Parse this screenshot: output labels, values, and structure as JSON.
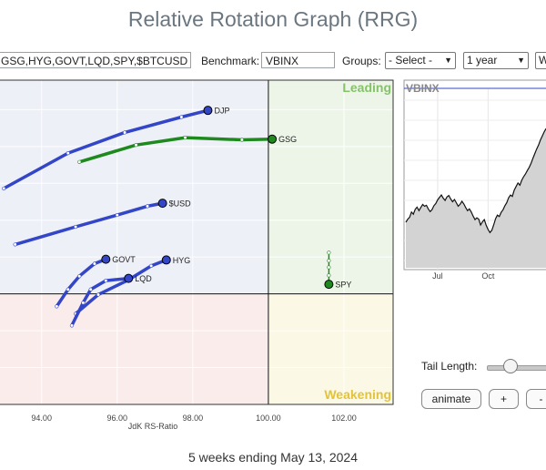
{
  "page": {
    "title": "Relative Rotation Graph (RRG)"
  },
  "toolbar": {
    "symbols_value": "GSG,HYG,GOVT,LQD,SPY,$BTCUSD",
    "benchmark_label": "Benchmark:",
    "benchmark_value": "VBINX",
    "groups_label": "Groups:",
    "groups_value": "- Select -",
    "period_value": "1 year",
    "extra_value": "W"
  },
  "rrg": {
    "quadrants": {
      "leading": "Leading",
      "weakening": "Weakening"
    },
    "xlabel": "JdK RS-Ratio",
    "xticks": [
      "94.00",
      "96.00",
      "98.00",
      "100.00",
      "102.00"
    ],
    "xlim": [
      92.9,
      103.3
    ],
    "center": [
      100,
      100
    ],
    "colors": {
      "leading": "#edf5e8",
      "weakening": "#fbf8e6",
      "lagging": "#fbecec",
      "improving": "#eef0f8",
      "blue": "#3346c7",
      "green": "#1e8a1e"
    }
  },
  "chart_data": [
    {
      "type": "scatter",
      "title": "",
      "xlabel": "JdK RS-Ratio",
      "ylabel": "",
      "xlim": [
        92.9,
        103.3
      ],
      "ylim": [
        98.5,
        102.9
      ],
      "series": [
        {
          "name": "DJP",
          "color": "#3346c7",
          "x": [
            93.0,
            94.7,
            96.2,
            97.7,
            98.4
          ],
          "y": [
            101.43,
            101.91,
            102.19,
            102.4,
            102.49
          ]
        },
        {
          "name": "GSG",
          "color": "#1e8a1e",
          "x": [
            95.0,
            96.5,
            97.8,
            99.3,
            100.1
          ],
          "y": [
            101.79,
            102.02,
            102.12,
            102.09,
            102.1
          ]
        },
        {
          "name": "$USD",
          "color": "#3346c7",
          "x": [
            93.3,
            94.9,
            96.0,
            96.8,
            97.2
          ],
          "y": [
            100.67,
            100.91,
            101.07,
            101.19,
            101.23
          ]
        },
        {
          "name": "GOVT",
          "color": "#3346c7",
          "x": [
            94.4,
            94.7,
            95.0,
            95.4,
            95.7
          ],
          "y": [
            99.83,
            100.06,
            100.24,
            100.41,
            100.47
          ]
        },
        {
          "name": "HYG",
          "color": "#3346c7",
          "x": [
            94.9,
            95.5,
            96.3,
            96.9,
            97.3
          ],
          "y": [
            99.73,
            99.99,
            100.19,
            100.38,
            100.46
          ]
        },
        {
          "name": "LQD",
          "color": "#3346c7",
          "x": [
            94.8,
            95.1,
            95.3,
            95.7,
            96.3
          ],
          "y": [
            99.57,
            99.88,
            100.06,
            100.18,
            100.21
          ]
        },
        {
          "name": "SPY",
          "color": "#1e8a1e",
          "x": [
            101.6,
            101.6,
            101.6,
            101.6,
            101.6
          ],
          "y": [
            100.56,
            100.45,
            100.36,
            100.25,
            100.13
          ]
        }
      ]
    },
    {
      "type": "area",
      "title": "VBINX",
      "xlabel": "",
      "ylabel": "",
      "xticks": [
        "Jul",
        "Oct"
      ],
      "x_index": [
        0,
        1,
        2,
        3,
        4,
        5,
        6,
        7,
        8,
        9,
        10,
        11,
        12,
        13,
        14,
        15,
        16,
        17,
        18,
        19,
        20,
        21,
        22,
        23,
        24,
        25,
        26,
        27,
        28,
        29,
        30,
        31,
        32,
        33,
        34,
        35,
        36,
        37,
        38,
        39,
        40,
        41,
        42,
        43,
        44,
        45,
        46,
        47,
        48,
        49,
        50,
        51,
        52,
        53,
        54,
        55,
        56,
        57,
        58,
        59,
        60,
        61,
        62,
        63,
        64,
        65,
        66,
        67,
        68,
        69,
        70,
        71,
        72,
        73,
        74,
        75
      ],
      "values": [
        40.2,
        40.9,
        41.3,
        42.5,
        42.0,
        43.1,
        43.6,
        42.8,
        43.5,
        44.2,
        43.8,
        44.0,
        43.2,
        42.6,
        43.0,
        43.9,
        44.4,
        45.2,
        45.8,
        46.3,
        45.6,
        45.1,
        45.9,
        46.2,
        45.4,
        44.8,
        45.3,
        44.6,
        43.8,
        44.2,
        44.9,
        44.3,
        43.5,
        42.8,
        43.2,
        42.5,
        41.6,
        40.8,
        41.2,
        40.9,
        39.6,
        40.3,
        40.8,
        39.5,
        38.6,
        37.9,
        38.4,
        39.6,
        41.0,
        41.8,
        41.5,
        42.4,
        43.0,
        43.9,
        44.6,
        45.7,
        46.3,
        46.0,
        47.4,
        48.2,
        49.0,
        48.5,
        49.6,
        50.4,
        51.0,
        51.8,
        52.5,
        53.4,
        54.5,
        55.6,
        56.6,
        57.5,
        58.6,
        59.5,
        60.4,
        61.2
      ],
      "series": [
        {
          "name": "VBINX"
        }
      ]
    }
  ],
  "controls": {
    "tail_label": "Tail Length:",
    "animate_label": "animate",
    "plus_label": "+",
    "minus_label": "-",
    "tail_value": 0.35
  },
  "footer": {
    "text": "5 weeks ending May 13, 2024"
  }
}
